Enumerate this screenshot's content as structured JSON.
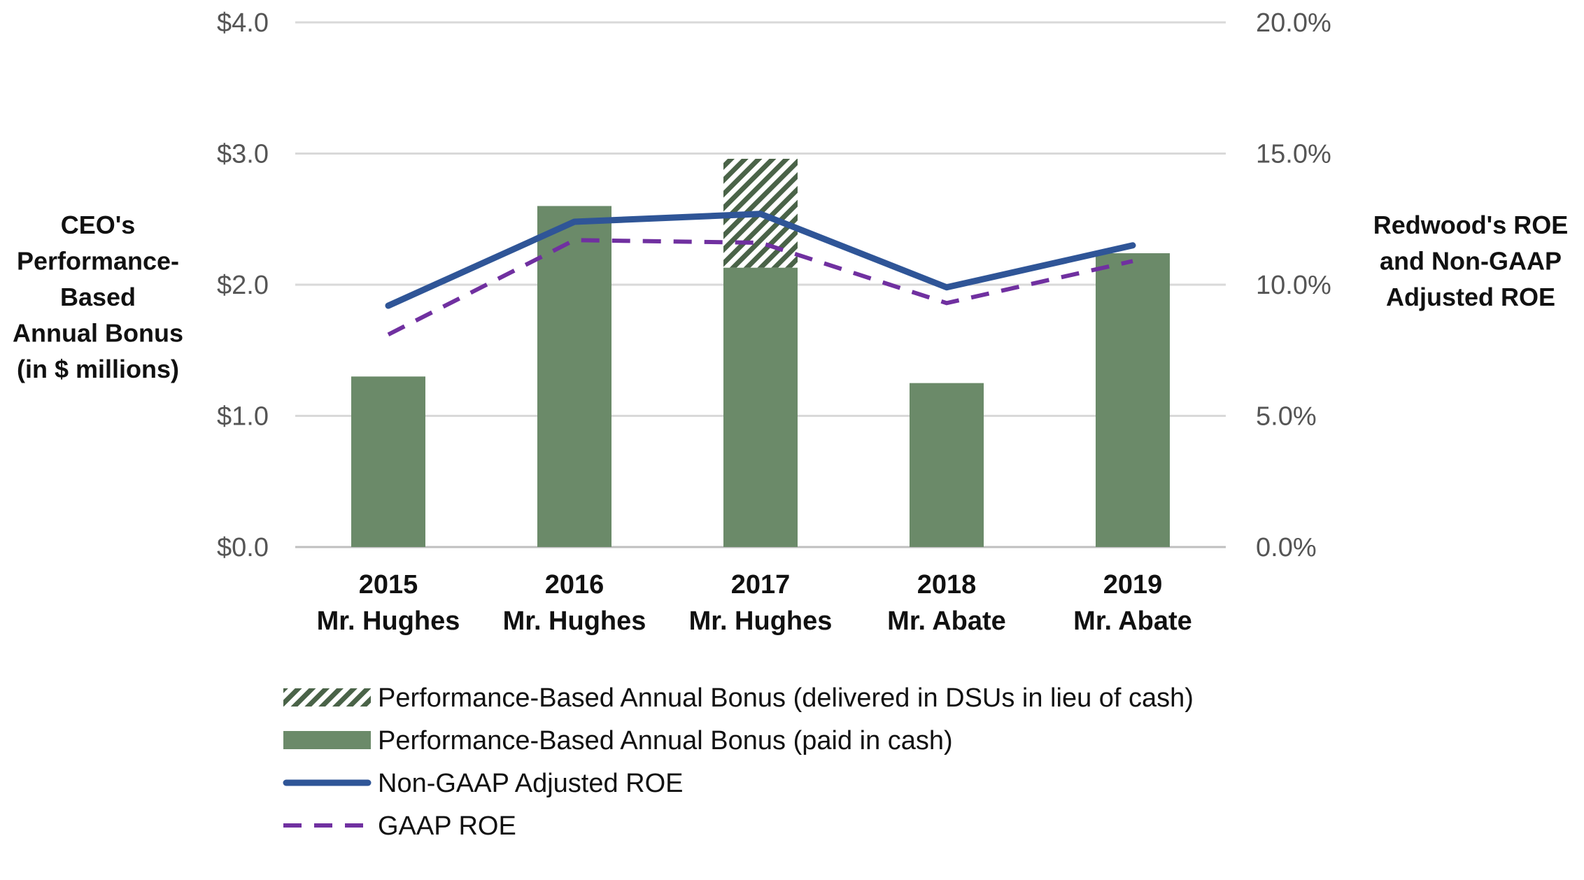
{
  "chart_data": {
    "type": "bar",
    "categories": [
      [
        "2015",
        "Mr. Hughes"
      ],
      [
        "2016",
        "Mr. Hughes"
      ],
      [
        "2017",
        "Mr. Hughes"
      ],
      [
        "2018",
        "Mr. Abate"
      ],
      [
        "2019",
        "Mr. Abate"
      ]
    ],
    "series": [
      {
        "name": "Performance-Based Annual Bonus (paid in cash)",
        "kind": "bar",
        "axis": "left",
        "values": [
          1.3,
          2.6,
          2.13,
          1.25,
          2.24
        ]
      },
      {
        "name": "Performance-Based Annual Bonus (delivered in DSUs in lieu of cash)",
        "kind": "bar-stacked-hatched",
        "axis": "left",
        "values": [
          0,
          0,
          0.83,
          0,
          0
        ]
      },
      {
        "name": "Non-GAAP Adjusted ROE",
        "kind": "line",
        "axis": "right",
        "values": [
          9.2,
          12.4,
          12.7,
          9.9,
          11.5
        ]
      },
      {
        "name": "GAAP ROE",
        "kind": "dashed-line",
        "axis": "right",
        "values": [
          8.1,
          11.7,
          11.6,
          9.3,
          10.9
        ]
      }
    ],
    "left_axis": {
      "title_lines": [
        "CEO's",
        "Performance-",
        "Based",
        "Annual Bonus",
        "(in $ millions)"
      ],
      "ylim": [
        0,
        4
      ],
      "ticks": [
        0,
        1,
        2,
        3,
        4
      ],
      "tick_labels": [
        "$0.0",
        "$1.0",
        "$2.0",
        "$3.0",
        "$4.0"
      ]
    },
    "right_axis": {
      "title_lines": [
        "Redwood's ROE",
        "and Non-GAAP",
        "Adjusted ROE"
      ],
      "ylim": [
        0,
        20
      ],
      "ticks": [
        0,
        5,
        10,
        15,
        20
      ],
      "tick_labels": [
        "0.0%",
        "5.0%",
        "10.0%",
        "15.0%",
        "20.0%"
      ]
    },
    "legend": {
      "placement": "bottom",
      "entries": [
        {
          "label": "Performance-Based Annual Bonus (delivered in DSUs in lieu of cash)",
          "swatch": "hatched"
        },
        {
          "label": "Performance-Based Annual Bonus (paid in cash)",
          "swatch": "solid"
        },
        {
          "label": "Non-GAAP Adjusted ROE",
          "swatch": "line"
        },
        {
          "label": "GAAP ROE",
          "swatch": "dashed"
        }
      ]
    },
    "grid": true,
    "colors": {
      "bar": "#6b8a69",
      "hatch": "#4a6348",
      "line": "#2f5597",
      "dashed": "#7030a0",
      "grid": "#d9d9d9"
    }
  }
}
